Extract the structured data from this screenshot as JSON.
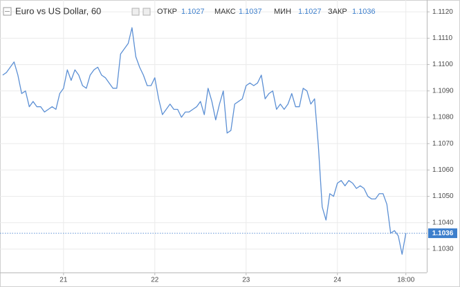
{
  "chart_data": {
    "type": "line",
    "title": "Euro vs US Dollar, 60",
    "ohlc": [
      {
        "label": "ОТКР",
        "value": 1.1027
      },
      {
        "label": "МАКС",
        "value": 1.1037
      },
      {
        "label": "МИН",
        "value": 1.1027
      },
      {
        "label": "ЗАКР",
        "value": 1.1036
      }
    ],
    "x": [
      -16,
      -15,
      -14,
      -13,
      -12,
      -11,
      -10,
      -9,
      -8,
      -7,
      -6,
      -5,
      -4,
      -3,
      -2,
      -1,
      0,
      1,
      2,
      3,
      4,
      5,
      6,
      7,
      8,
      9,
      10,
      11,
      12,
      13,
      14,
      15,
      16,
      17,
      18,
      19,
      20,
      21,
      22,
      23,
      24,
      25,
      26,
      27,
      28,
      29,
      30,
      31,
      32,
      33,
      34,
      35,
      36,
      37,
      38,
      39,
      40,
      41,
      42,
      43,
      44,
      45,
      46,
      47,
      48,
      49,
      50,
      51,
      52,
      53,
      54,
      55,
      56,
      57,
      58,
      59,
      60,
      61,
      62,
      63,
      64,
      65,
      66,
      67,
      68,
      69,
      70,
      71,
      72,
      73,
      74,
      75,
      76,
      77,
      78,
      79,
      80,
      81,
      82,
      83,
      84,
      85,
      86,
      87,
      88,
      89,
      90
    ],
    "series": [
      {
        "name": "EURUSD",
        "color": "#5b8fd4",
        "values": [
          1.1096,
          1.1097,
          1.1099,
          1.1101,
          1.1096,
          1.1089,
          1.109,
          1.1084,
          1.1086,
          1.1084,
          1.1084,
          1.1082,
          1.1083,
          1.1084,
          1.1083,
          1.1089,
          1.1091,
          1.1098,
          1.1094,
          1.1098,
          1.1096,
          1.1092,
          1.1091,
          1.1096,
          1.1098,
          1.1099,
          1.1096,
          1.1095,
          1.1093,
          1.1091,
          1.1091,
          1.1104,
          1.1106,
          1.1108,
          1.1114,
          1.1103,
          1.1099,
          1.1096,
          1.1092,
          1.1092,
          1.1095,
          1.1087,
          1.1081,
          1.1083,
          1.1085,
          1.1083,
          1.1083,
          1.108,
          1.1082,
          1.1082,
          1.1083,
          1.1084,
          1.1086,
          1.1081,
          1.1091,
          1.1086,
          1.1079,
          1.1085,
          1.109,
          1.1074,
          1.1075,
          1.1085,
          1.1086,
          1.1087,
          1.1092,
          1.1093,
          1.1092,
          1.1093,
          1.1096,
          1.1087,
          1.1089,
          1.109,
          1.1083,
          1.1085,
          1.1083,
          1.1085,
          1.1089,
          1.1084,
          1.1084,
          1.1091,
          1.109,
          1.1085,
          1.1087,
          1.1069,
          1.1046,
          1.1041,
          1.1051,
          1.105,
          1.1055,
          1.1056,
          1.1054,
          1.1056,
          1.1055,
          1.1053,
          1.1054,
          1.1053,
          1.105,
          1.1049,
          1.1049,
          1.1051,
          1.1051,
          1.1047,
          1.1036,
          1.1037,
          1.1035,
          1.1028,
          1.1036
        ]
      }
    ],
    "last_price": 1.1036,
    "xlim": [
      -16.7,
      95.5
    ],
    "xticks": [
      {
        "value": 0,
        "label": "21"
      },
      {
        "value": 24,
        "label": "22"
      },
      {
        "value": 48,
        "label": "23"
      },
      {
        "value": 72,
        "label": "24"
      },
      {
        "value": 90,
        "label": "18:00"
      }
    ],
    "ylim": [
      1.10211,
      1.11224
    ],
    "yticks": [
      {
        "value": 1.103,
        "label": "1.1030"
      },
      {
        "value": 1.104,
        "label": "1.1040"
      },
      {
        "value": 1.105,
        "label": "1.1050"
      },
      {
        "value": 1.106,
        "label": "1.1060"
      },
      {
        "value": 1.107,
        "label": "1.1070"
      },
      {
        "value": 1.108,
        "label": "1.1080"
      },
      {
        "value": 1.109,
        "label": "1.1090"
      },
      {
        "value": 1.11,
        "label": "1.1100"
      },
      {
        "value": 1.111,
        "label": "1.1110"
      },
      {
        "value": 1.112,
        "label": "1.1120"
      }
    ],
    "grid": true
  }
}
